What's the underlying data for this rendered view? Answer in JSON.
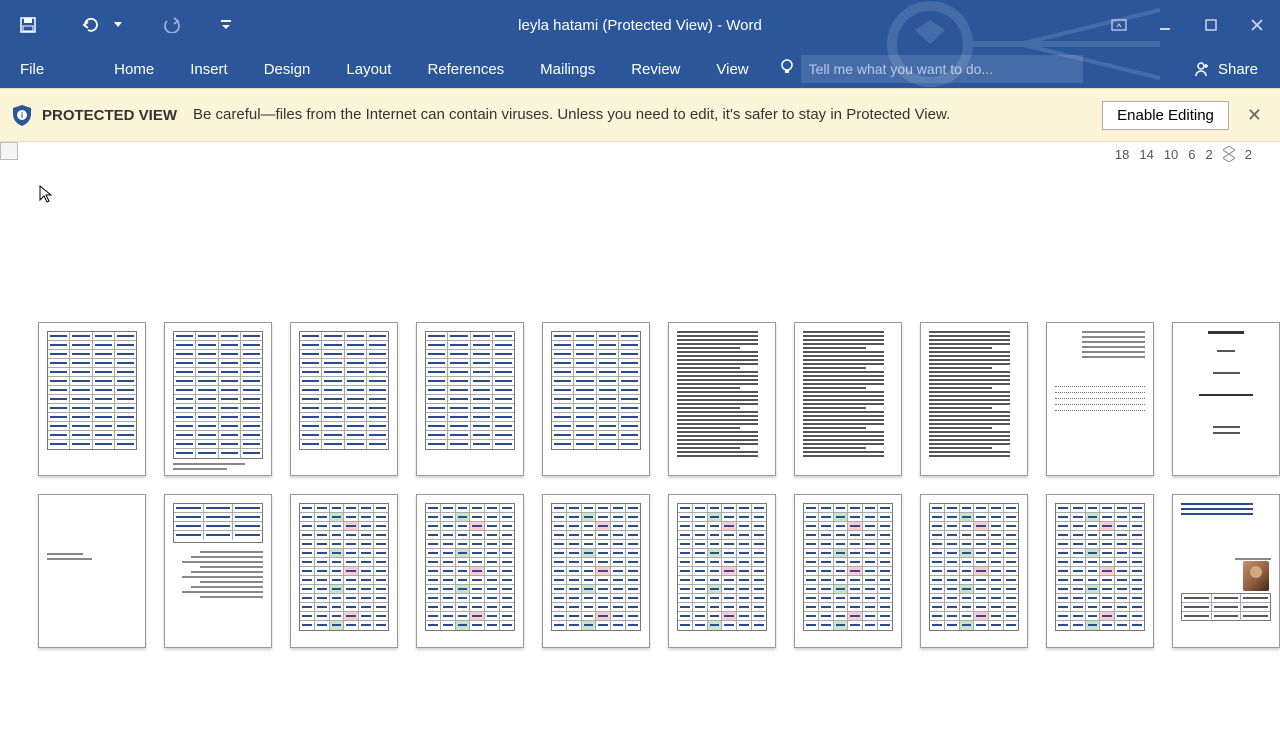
{
  "title": "leyla hatami (Protected View) - Word",
  "tabs": {
    "file": "File",
    "home": "Home",
    "insert": "Insert",
    "design": "Design",
    "layout": "Layout",
    "references": "References",
    "mailings": "Mailings",
    "review": "Review",
    "view": "View"
  },
  "tellme_placeholder": "Tell me what you want to do...",
  "share": "Share",
  "protected_view": {
    "label": "PROTECTED VIEW",
    "message": "Be careful—files from the Internet can contain viruses. Unless you need to edit, it's safer to stay in Protected View.",
    "enable": "Enable Editing"
  },
  "ruler": {
    "marks": [
      "18",
      "14",
      "10",
      "6",
      "2",
      "2"
    ]
  },
  "colors": {
    "ribbon": "#2b579a",
    "protected_bg": "#fdf5d8"
  },
  "thumbnails": {
    "row1": [
      {
        "type": "title"
      },
      {
        "type": "form-dotted"
      },
      {
        "type": "dense"
      },
      {
        "type": "dense"
      },
      {
        "type": "dense"
      },
      {
        "type": "table-blue"
      },
      {
        "type": "table-blue"
      },
      {
        "type": "table-blue"
      },
      {
        "type": "table-mix"
      },
      {
        "type": "table-plain"
      }
    ],
    "row2": [
      {
        "type": "profile"
      },
      {
        "type": "colored-table"
      },
      {
        "type": "colored-table"
      },
      {
        "type": "colored-table"
      },
      {
        "type": "colored-table"
      },
      {
        "type": "colored-table"
      },
      {
        "type": "colored-table"
      },
      {
        "type": "colored-table"
      },
      {
        "type": "text-list"
      },
      {
        "type": "sparse"
      }
    ]
  }
}
